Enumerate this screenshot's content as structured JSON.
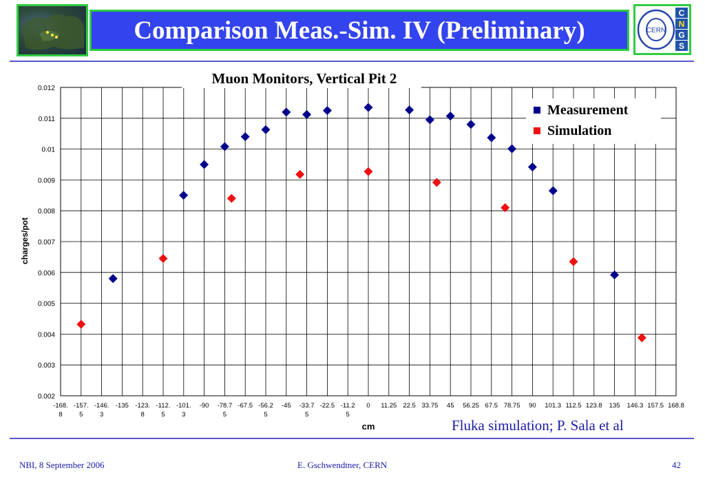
{
  "slide": {
    "title": "Comparison Meas.-Sim. IV (Preliminary)",
    "credit": "Fluka simulation; P. Sala et al",
    "footer_left": "NBI, 8 September 2006",
    "footer_center": "E. Gschwendtner, CERN",
    "footer_right": "42",
    "logo_text": "CERN",
    "logo_letters": [
      "C",
      "N",
      "G",
      "S"
    ]
  },
  "colors": {
    "title_bg": "#3344ee",
    "frame": "#2ecc40",
    "measurement": "#00008b",
    "simulation": "#ee1111",
    "text_blue": "#1a1aaa"
  },
  "chart_data": {
    "type": "scatter",
    "title": "Muon Monitors, Vertical Pit 2",
    "xlabel": "cm",
    "ylabel": "charges/pot",
    "ylim": [
      0.002,
      0.012
    ],
    "yticks": [
      "0.002",
      "0.003",
      "0.004",
      "0.005",
      "0.006",
      "0.007",
      "0.008",
      "0.009",
      "0.01",
      "0.011",
      "0.012"
    ],
    "categories": [
      [
        "-168.",
        "8"
      ],
      [
        "-157.",
        "5"
      ],
      [
        "-146.",
        "3"
      ],
      [
        "-135"
      ],
      [
        "-123.",
        "8"
      ],
      [
        "-112.",
        "5"
      ],
      [
        "-101.",
        "3"
      ],
      [
        "-90"
      ],
      [
        "-78.7",
        "5"
      ],
      [
        "-67.5"
      ],
      [
        "-56.2",
        "5"
      ],
      [
        "-45"
      ],
      [
        "-33.7",
        "5"
      ],
      [
        "-22.5"
      ],
      [
        "-11.2",
        "5"
      ],
      [
        "0"
      ],
      [
        "11.25"
      ],
      [
        "22.5"
      ],
      [
        "33.75"
      ],
      [
        "45"
      ],
      [
        "56.25"
      ],
      [
        "67.5"
      ],
      [
        "78.75"
      ],
      [
        "90"
      ],
      [
        "101.3"
      ],
      [
        "112.5"
      ],
      [
        "123.8"
      ],
      [
        "135"
      ],
      [
        "146.3"
      ],
      [
        "157.5"
      ],
      [
        "168.8"
      ]
    ],
    "grid": true,
    "legend": "top-right",
    "series": [
      {
        "name": "Measurement",
        "marker": "diamond",
        "points": [
          [
            -140,
            0.0058
          ],
          [
            -101.3,
            0.0085
          ],
          [
            -90,
            0.0095
          ],
          [
            -78.75,
            0.01008
          ],
          [
            -67.5,
            0.0104
          ],
          [
            -56.25,
            0.01063
          ],
          [
            -45,
            0.0112
          ],
          [
            -33.75,
            0.01112
          ],
          [
            -22.5,
            0.01125
          ],
          [
            0,
            0.01135
          ],
          [
            22.5,
            0.01127
          ],
          [
            33.75,
            0.01095
          ],
          [
            45,
            0.01107
          ],
          [
            56.25,
            0.0108
          ],
          [
            67.5,
            0.01037
          ],
          [
            78.75,
            0.01001
          ],
          [
            90,
            0.00942
          ],
          [
            101.3,
            0.00865
          ],
          [
            135,
            0.00592
          ]
        ]
      },
      {
        "name": "Simulation",
        "marker": "diamond",
        "points": [
          [
            -157.5,
            0.00432
          ],
          [
            -112.5,
            0.00645
          ],
          [
            -75,
            0.0084
          ],
          [
            -37.5,
            0.00918
          ],
          [
            0,
            0.00927
          ],
          [
            37.5,
            0.00892
          ],
          [
            75,
            0.0081
          ],
          [
            112.5,
            0.00635
          ],
          [
            150,
            0.00388
          ]
        ]
      }
    ]
  }
}
